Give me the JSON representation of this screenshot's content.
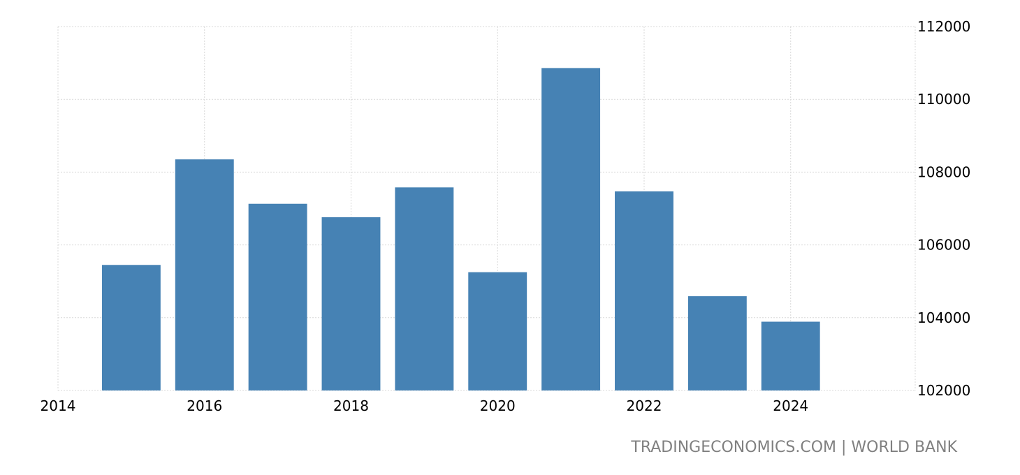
{
  "chart_data": {
    "type": "bar",
    "categories": [
      "2015",
      "2016",
      "2017",
      "2018",
      "2019",
      "2020",
      "2021",
      "2022",
      "2023",
      "2024"
    ],
    "x": [
      2015,
      2016,
      2017,
      2018,
      2019,
      2020,
      2021,
      2022,
      2023,
      2024
    ],
    "values": [
      105450,
      108350,
      107130,
      106760,
      107580,
      105250,
      110860,
      107470,
      104590,
      103890
    ],
    "xlim": [
      2014,
      2025.7
    ],
    "ylim": [
      102000,
      112000
    ],
    "xticks": [
      "2014",
      "2016",
      "2018",
      "2020",
      "2022",
      "2024"
    ],
    "yticks": [
      "102000",
      "104000",
      "106000",
      "108000",
      "110000",
      "112000"
    ],
    "grid": true,
    "bar_color": "#4682b4",
    "title": "",
    "xlabel": "",
    "ylabel": ""
  },
  "source": {
    "text": "TRADINGECONOMICS.COM | WORLD BANK"
  }
}
